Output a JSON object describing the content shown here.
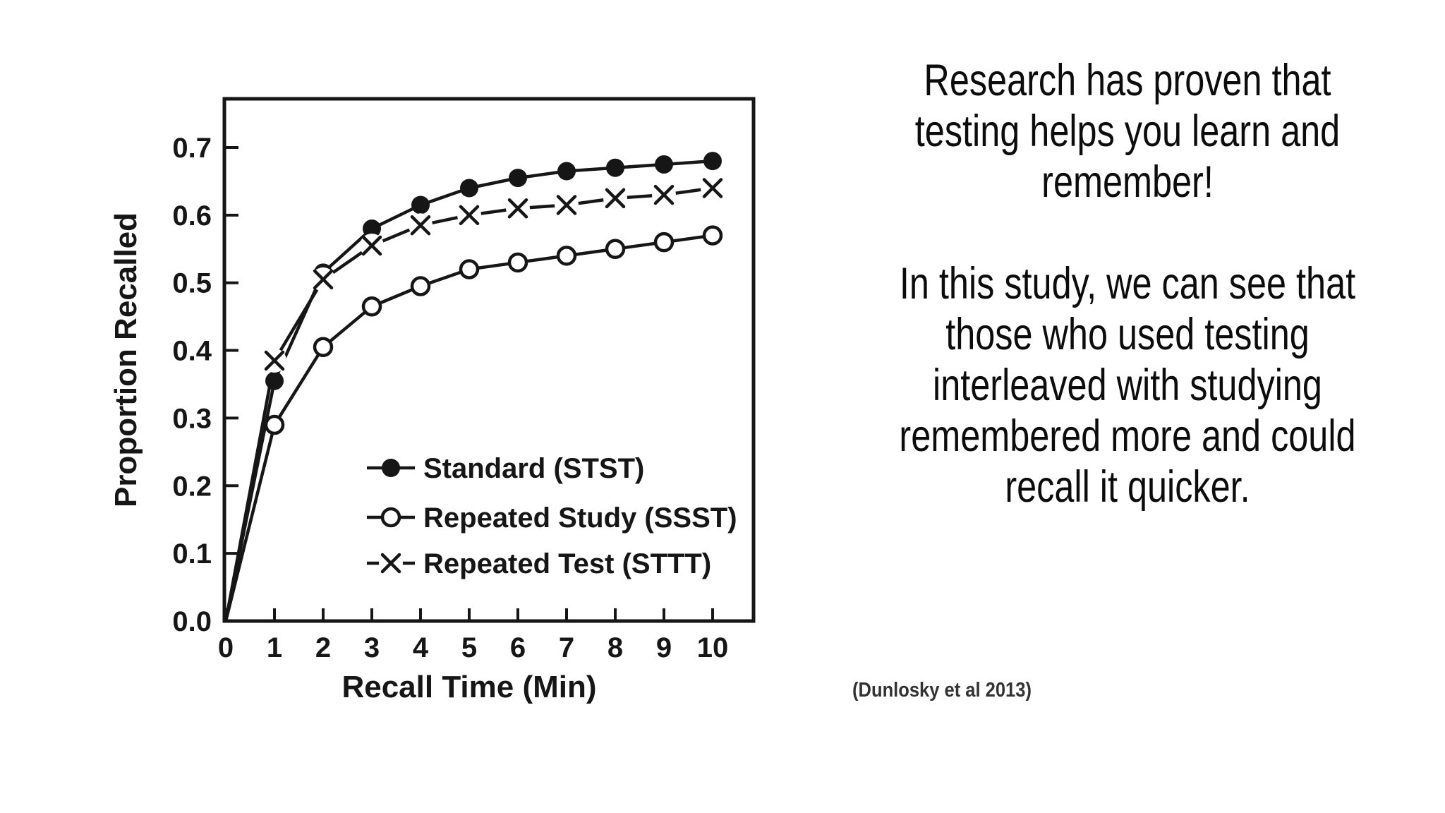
{
  "slide": {
    "background": "#ffffff",
    "ink_color": "#161616",
    "text_color": "#0c0c0c",
    "citation_color": "#333333"
  },
  "right_panel": {
    "paragraph1_lines": [
      "Research has proven that",
      "testing helps you learn and",
      "remember!"
    ],
    "paragraph2_lines": [
      "In this study, we can see that",
      "those who used testing",
      "interleaved with studying",
      "remembered more and could",
      "recall it quicker."
    ],
    "citation": "(Dunlosky et al 2013)"
  },
  "chart_data": {
    "type": "line",
    "title": "",
    "xlabel": "Recall Time (Min)",
    "ylabel": "Proportion Recalled",
    "x": [
      0,
      1,
      2,
      3,
      4,
      5,
      6,
      7,
      8,
      9,
      10
    ],
    "x_tick_labels": [
      "0",
      "1",
      "2",
      "3",
      "4",
      "5",
      "6",
      "7",
      "8",
      "9",
      "10"
    ],
    "y_ticks": [
      0.0,
      0.1,
      0.2,
      0.3,
      0.4,
      0.5,
      0.6,
      0.7
    ],
    "y_tick_labels_top_down": [
      "0.7",
      "0.6",
      "0.5",
      "0.4",
      "0.3",
      "0.2",
      "0.1",
      "0.0"
    ],
    "xlim": [
      0,
      10.85
    ],
    "ylim": [
      0,
      0.77
    ],
    "grid": false,
    "legend_position": "inside-lower-right",
    "series": [
      {
        "name": "Standard (STST)",
        "marker": "filled-circle",
        "line": "solid",
        "values": [
          0,
          0.355,
          0.515,
          0.58,
          0.615,
          0.64,
          0.655,
          0.665,
          0.67,
          0.675,
          0.68
        ]
      },
      {
        "name": "Repeated Study (SSST)",
        "marker": "open-circle",
        "line": "solid",
        "values": [
          0,
          0.29,
          0.405,
          0.465,
          0.495,
          0.52,
          0.53,
          0.54,
          0.55,
          0.56,
          0.57
        ]
      },
      {
        "name": "Repeated Test (STTT)",
        "marker": "x",
        "line": "solid-with-marker-gaps",
        "values": [
          0,
          0.385,
          0.505,
          0.555,
          0.585,
          0.6,
          0.61,
          0.615,
          0.625,
          0.63,
          0.64
        ]
      }
    ]
  }
}
